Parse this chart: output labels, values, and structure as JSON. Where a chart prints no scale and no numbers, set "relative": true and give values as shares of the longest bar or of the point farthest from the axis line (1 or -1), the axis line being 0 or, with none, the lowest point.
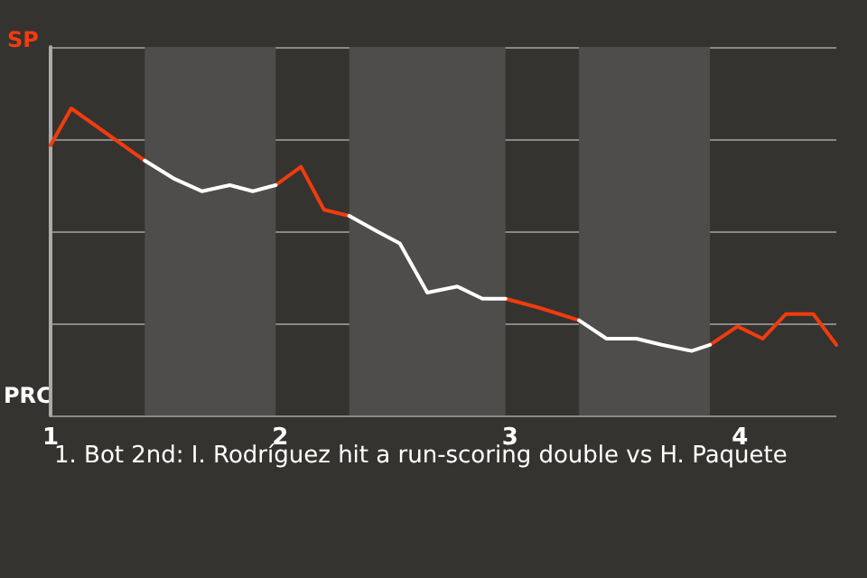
{
  "chart_data": {
    "type": "line",
    "relative": true,
    "x": [
      1.0,
      1.09,
      1.41,
      1.54,
      1.66,
      1.78,
      1.88,
      1.98,
      2.09,
      2.19,
      2.3,
      2.42,
      2.52,
      2.64,
      2.77,
      2.88,
      2.98,
      3.13,
      3.3,
      3.42,
      3.55,
      3.66,
      3.79,
      3.87,
      3.99,
      4.1,
      4.2,
      4.32,
      4.42
    ],
    "series": [
      {
        "color": "#f03c0f",
        "values": [
          0.88,
          1,
          0.83,
          null,
          null,
          null,
          null,
          0.75,
          0.81,
          0.67,
          0.65,
          null,
          null,
          null,
          null,
          null,
          0.38,
          0.35,
          0.31,
          null,
          null,
          null,
          null,
          0.23,
          0.29,
          0.25,
          0.33,
          0.33,
          0.23
        ]
      },
      {
        "color": "#ffffff",
        "values": [
          null,
          null,
          0.83,
          0.77,
          0.73,
          0.75,
          0.73,
          0.75,
          null,
          null,
          0.65,
          0.6,
          0.56,
          0.4,
          0.42,
          0.38,
          0.38,
          null,
          0.31,
          0.25,
          0.25,
          0.23,
          0.21,
          0.23,
          null,
          null,
          null,
          null,
          null
        ]
      }
    ],
    "xlim": [
      1,
      4.42
    ],
    "xticks": [
      1,
      2,
      3,
      4
    ],
    "grid": "y",
    "marker": "none",
    "line_style": "solid",
    "bands": [
      {
        "axis": "x",
        "from": 1.41,
        "to": 1.98,
        "color": "#4f4d4b"
      },
      {
        "axis": "x",
        "from": 2.3,
        "to": 2.98,
        "color": "#4f4d4b"
      },
      {
        "axis": "x",
        "from": 3.3,
        "to": 3.87,
        "color": "#4f4d4b"
      }
    ],
    "annotations": [
      "SP",
      "PRC",
      "1. Bot 2nd: I. Rodríguez hit a run-scoring double vs H. Paquete"
    ]
  }
}
